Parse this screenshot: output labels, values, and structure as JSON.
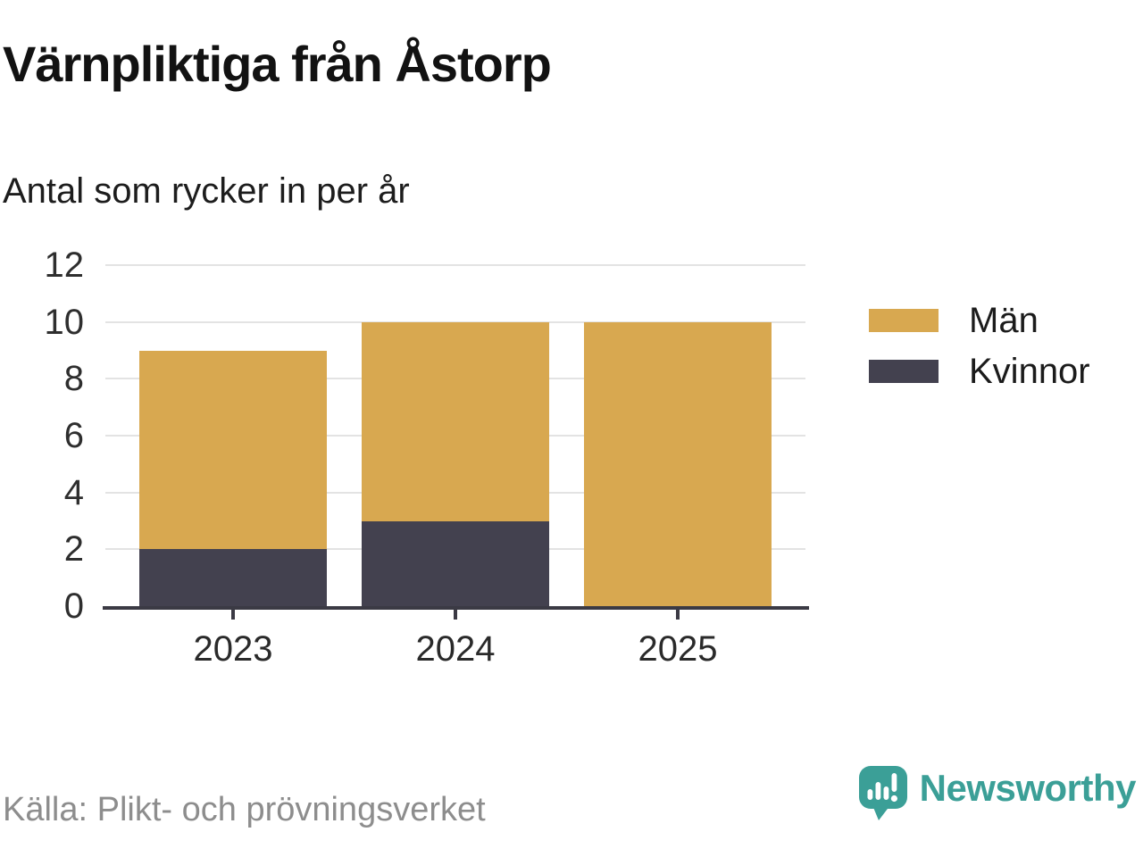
{
  "header": {
    "title": "Värnpliktiga från Åstorp",
    "subtitle": "Antal som rycker in per år"
  },
  "chart_data": {
    "type": "bar",
    "stacked": true,
    "title": "Värnpliktiga från Åstorp",
    "subtitle": "Antal som rycker in per år",
    "categories": [
      "2023",
      "2024",
      "2025"
    ],
    "series": [
      {
        "name": "Män",
        "color": "#d8a850",
        "values": [
          7,
          7,
          10
        ]
      },
      {
        "name": "Kvinnor",
        "color": "#43414f",
        "values": [
          2,
          3,
          0
        ]
      }
    ],
    "stack_bottom_to_top": [
      "Kvinnor",
      "Män"
    ],
    "totals": [
      9,
      10,
      10
    ],
    "xlabel": "",
    "ylabel": "",
    "ylim": [
      0,
      12
    ],
    "yticks": [
      0,
      2,
      4,
      6,
      8,
      10,
      12
    ],
    "grid": true,
    "legend_position": "right"
  },
  "footer": {
    "source": "Källa: Plikt- och prövningsverket",
    "brand_name": "Newsworthy"
  },
  "colors": {
    "men": "#d8a850",
    "women": "#43414f",
    "axis": "#3b3a44",
    "gridline": "#e3e3e3",
    "brand_teal": "#3b9f97",
    "source_text": "#8d8d8d"
  }
}
